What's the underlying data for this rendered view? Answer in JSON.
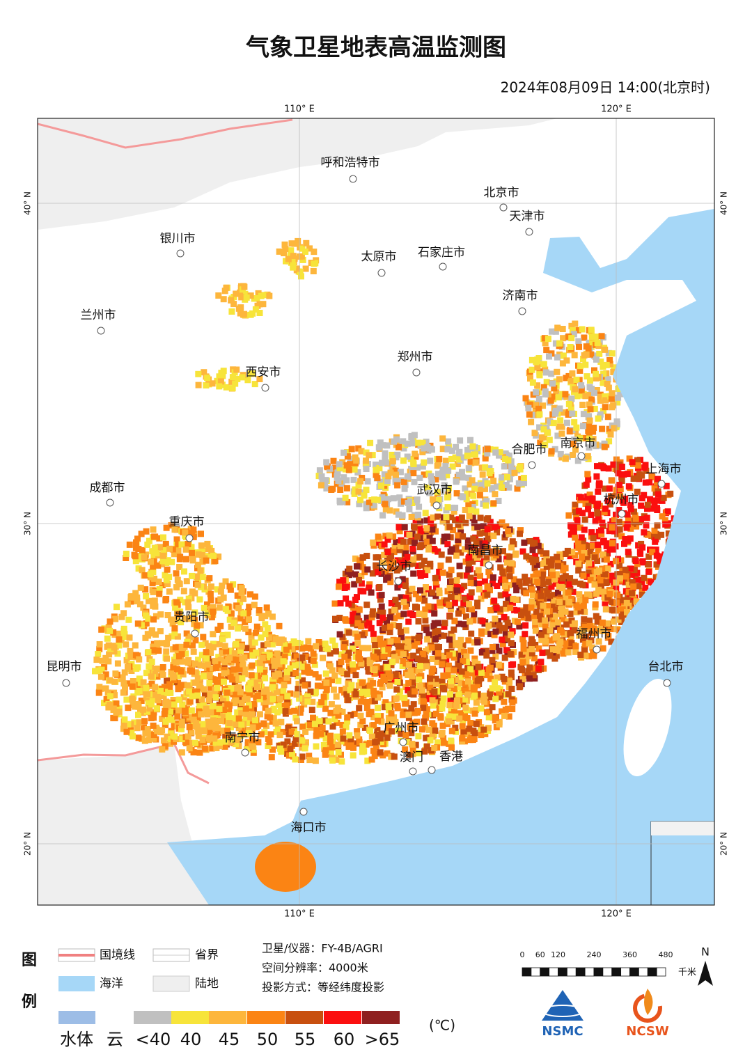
{
  "title": "气象卫星地表高温监测图",
  "datetime": "2024年08月09日  14:00(北京时)",
  "map": {
    "lon_labels": [
      "110° E",
      "120° E"
    ],
    "lat_labels": [
      "40° N",
      "30° N",
      "20° N"
    ],
    "cities": [
      "呼和浩特市",
      "北京市",
      "天津市",
      "银川市",
      "太原市",
      "石家庄市",
      "济南市",
      "兰州市",
      "郑州市",
      "西安市",
      "合肥市",
      "南京市",
      "上海市",
      "成都市",
      "武汉市",
      "杭州市",
      "重庆市",
      "南昌市",
      "长沙市",
      "贵阳市",
      "福州市",
      "昆明市",
      "台北市",
      "广州市",
      "南宁市",
      "澳门",
      "香港",
      "海口市"
    ]
  },
  "legend": {
    "title_chars": [
      "图",
      "例"
    ],
    "boundary_items": [
      "国境线",
      "省界",
      "海洋",
      "陆地"
    ],
    "temperature": {
      "labels": [
        "水体",
        "云",
        "<40",
        "40",
        "45",
        "50",
        "55",
        "60",
        ">65"
      ],
      "colors": [
        "#9dbde6",
        "#c0c0c0",
        "#f7e43a",
        "#fdb63c",
        "#fb8414",
        "#c8500f",
        "#fb0f0f",
        "#8f2020"
      ],
      "unit": "(℃)"
    }
  },
  "info": [
    "卫星/仪器：FY-4B/AGRI",
    "空间分辨率：4000米",
    "投影方式：等经纬度投影"
  ],
  "scale": {
    "ticks": [
      0,
      60,
      120,
      240,
      360,
      480
    ],
    "unit": "千米"
  },
  "north": "N",
  "logos": [
    "NSMC",
    "NCSW"
  ]
}
